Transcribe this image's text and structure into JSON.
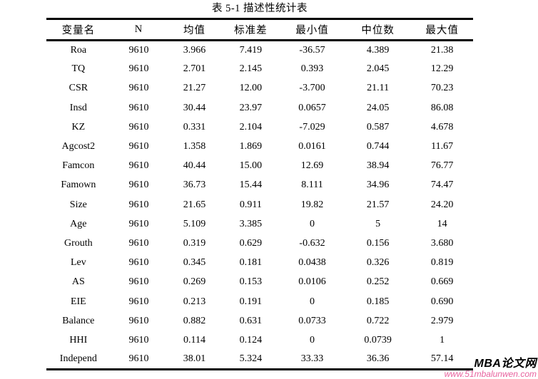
{
  "title": "表 5-1 描述性统计表",
  "table": {
    "headers": [
      "变量名",
      "N",
      "均值",
      "标准差",
      "最小值",
      "中位数",
      "最大值"
    ],
    "rows": [
      [
        "Roa",
        "9610",
        "3.966",
        "7.419",
        "-36.57",
        "4.389",
        "21.38"
      ],
      [
        "TQ",
        "9610",
        "2.701",
        "2.145",
        "0.393",
        "2.045",
        "12.29"
      ],
      [
        "CSR",
        "9610",
        "21.27",
        "12.00",
        "-3.700",
        "21.11",
        "70.23"
      ],
      [
        "Insd",
        "9610",
        "30.44",
        "23.97",
        "0.0657",
        "24.05",
        "86.08"
      ],
      [
        "KZ",
        "9610",
        "0.331",
        "2.104",
        "-7.029",
        "0.587",
        "4.678"
      ],
      [
        "Agcost2",
        "9610",
        "1.358",
        "1.869",
        "0.0161",
        "0.744",
        "11.67"
      ],
      [
        "Famcon",
        "9610",
        "40.44",
        "15.00",
        "12.69",
        "38.94",
        "76.77"
      ],
      [
        "Famown",
        "9610",
        "36.73",
        "15.44",
        "8.111",
        "34.96",
        "74.47"
      ],
      [
        "Size",
        "9610",
        "21.65",
        "0.911",
        "19.82",
        "21.57",
        "24.20"
      ],
      [
        "Age",
        "9610",
        "5.109",
        "3.385",
        "0",
        "5",
        "14"
      ],
      [
        "Grouth",
        "9610",
        "0.319",
        "0.629",
        "-0.632",
        "0.156",
        "3.680"
      ],
      [
        "Lev",
        "9610",
        "0.345",
        "0.181",
        "0.0438",
        "0.326",
        "0.819"
      ],
      [
        "AS",
        "9610",
        "0.269",
        "0.153",
        "0.0106",
        "0.252",
        "0.669"
      ],
      [
        "EIE",
        "9610",
        "0.213",
        "0.191",
        "0",
        "0.185",
        "0.690"
      ],
      [
        "Balance",
        "9610",
        "0.882",
        "0.631",
        "0.0733",
        "0.722",
        "2.979"
      ],
      [
        "HHI",
        "9610",
        "0.114",
        "0.124",
        "0",
        "0.0739",
        "1"
      ],
      [
        "Independ",
        "9610",
        "38.01",
        "5.324",
        "33.33",
        "36.36",
        "57.14"
      ]
    ]
  },
  "watermark": {
    "brand": "MBA论文网",
    "url": "www.51mbalunwen.com",
    "brand_color": "#000000",
    "url_color": "#e8639f"
  }
}
